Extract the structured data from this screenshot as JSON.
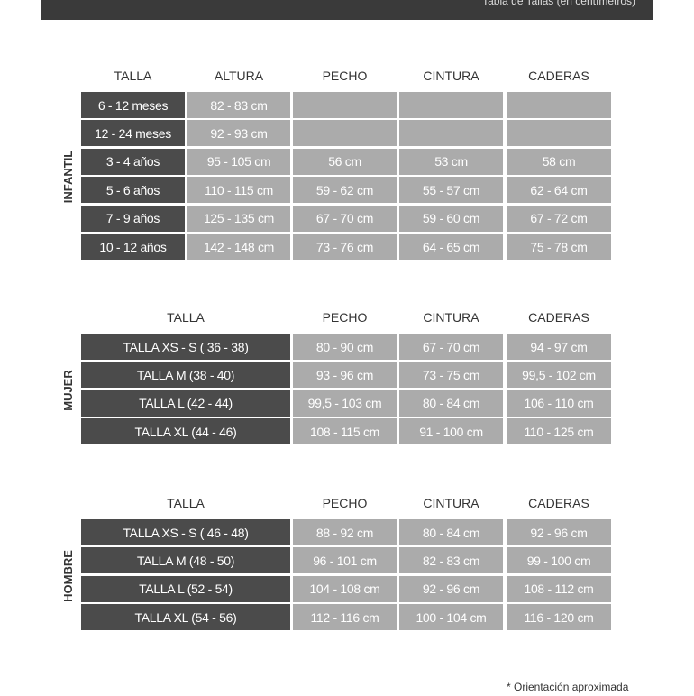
{
  "banner": "Tabla de Tallas (en centímetros)",
  "sections": [
    {
      "label": "INFANTIL",
      "headers": [
        "TALLA",
        "ALTURA",
        "PECHO",
        "CINTURA",
        "CADERAS"
      ],
      "rows": [
        [
          "6 - 12 meses",
          "82 - 83 cm"
        ],
        [
          "12 - 24 meses",
          "92 - 93 cm"
        ],
        [
          "3 - 4 años",
          "95 - 105 cm",
          "56 cm",
          "53 cm",
          "58 cm"
        ],
        [
          "5 - 6 años",
          "110 - 115 cm",
          "59 - 62 cm",
          "55 - 57 cm",
          "62 - 64 cm"
        ],
        [
          "7 - 9 años",
          "125 - 135 cm",
          "67 - 70 cm",
          "59 - 60 cm",
          "67 - 72 cm"
        ],
        [
          "10 - 12 años",
          "142 - 148 cm",
          "73 - 76 cm",
          "64 - 65 cm",
          "75 - 78 cm"
        ]
      ]
    },
    {
      "label": "MUJER",
      "headers": [
        "TALLA",
        "PECHO",
        "CINTURA",
        "CADERAS"
      ],
      "rows": [
        [
          "TALLA XS - S ( 36 - 38)",
          "80 - 90 cm",
          "67 - 70 cm",
          "94 - 97 cm"
        ],
        [
          "TALLA M (38 - 40)",
          "93 - 96 cm",
          "73 - 75 cm",
          "99,5 - 102 cm"
        ],
        [
          "TALLA L (42 - 44)",
          "99,5 - 103 cm",
          "80 - 84 cm",
          "106 - 110 cm"
        ],
        [
          "TALLA XL (44 - 46)",
          "108 - 115 cm",
          "91 - 100 cm",
          "110 - 125 cm"
        ]
      ]
    },
    {
      "label": "HOMBRE",
      "headers": [
        "TALLA",
        "PECHO",
        "CINTURA",
        "CADERAS"
      ],
      "rows": [
        [
          "TALLA XS - S ( 46 - 48)",
          "88 - 92 cm",
          "80 - 84 cm",
          "92 - 96 cm"
        ],
        [
          "TALLA M (48 - 50)",
          "96 - 101 cm",
          "82 - 83 cm",
          "99 - 100 cm"
        ],
        [
          "TALLA L (52 - 54)",
          "104 - 108 cm",
          "92 - 96 cm",
          "108 - 112 cm"
        ],
        [
          "TALLA XL (54 - 56)",
          "112 - 116 cm",
          "100 - 104 cm",
          "116 - 120 cm"
        ]
      ]
    }
  ],
  "footnote": "* Orientación aproximada"
}
